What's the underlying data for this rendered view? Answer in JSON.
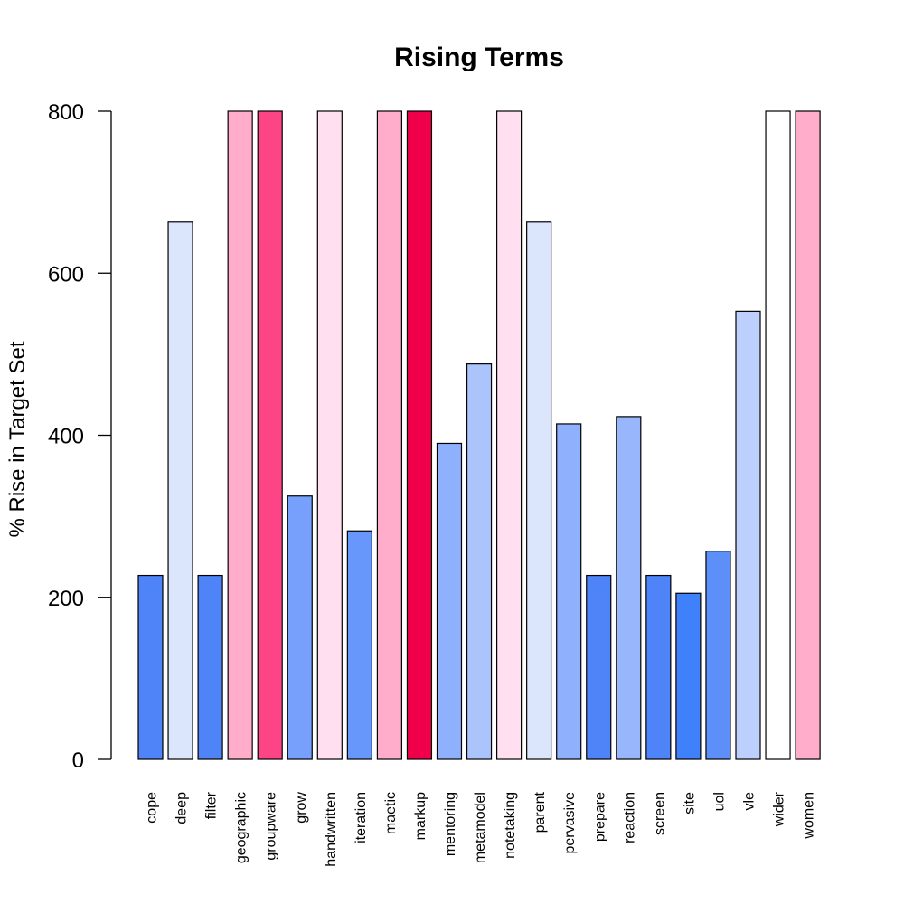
{
  "chart_data": {
    "type": "bar",
    "title": "Rising Terms",
    "xlabel": "",
    "ylabel": "% Rise in Target Set",
    "ylim": [
      0,
      800
    ],
    "yticks": [
      0,
      200,
      400,
      600,
      800
    ],
    "grid": false,
    "legend": "none",
    "categories": [
      "cope",
      "deep",
      "filter",
      "geographic",
      "groupware",
      "grow",
      "handwritten",
      "iteration",
      "maetic",
      "markup",
      "mentoring",
      "metamodel",
      "notetaking",
      "parent",
      "pervasive",
      "prepare",
      "reaction",
      "screen",
      "site",
      "uol",
      "vle",
      "wider",
      "women"
    ],
    "values": [
      227,
      663,
      227,
      800,
      800,
      325,
      800,
      282,
      800,
      800,
      390,
      488,
      800,
      663,
      414,
      227,
      423,
      227,
      205,
      257,
      553,
      800,
      800
    ],
    "colors": [
      "#4f84f9",
      "#dbe6fd",
      "#4f84f9",
      "#ffadca",
      "#fd4485",
      "#76a0fb",
      "#ffdff0",
      "#6797fa",
      "#ffadca",
      "#f0004a",
      "#8fb0fc",
      "#abc4fc",
      "#ffdff0",
      "#dbe6fd",
      "#8fb0fc",
      "#4f84f9",
      "#98b6fc",
      "#4f84f9",
      "#3f81fa",
      "#5d8ff9",
      "#bdd0fd",
      "#ffffff",
      "#ffadca"
    ]
  }
}
